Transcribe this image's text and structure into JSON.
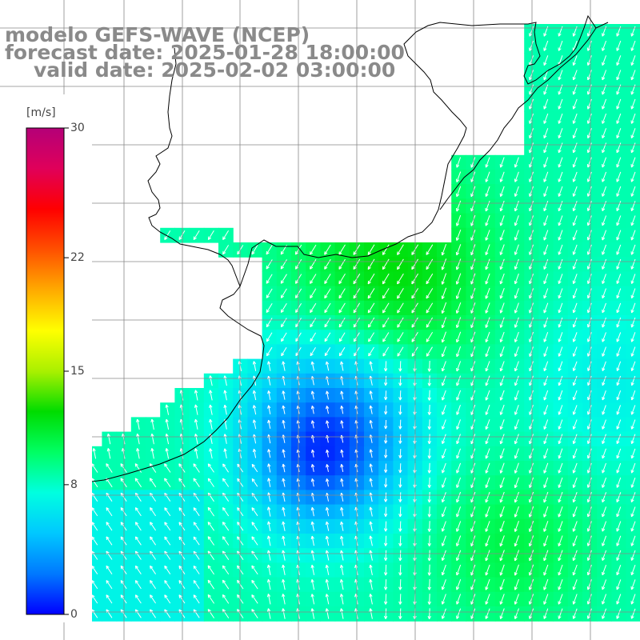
{
  "title": {
    "line1": "modelo GEFS-WAVE (NCEP)",
    "line2": "forecast date: 2025-01-28 18:00:00",
    "line3": "valid date: 2025-02-02 03:00:00"
  },
  "colorbar": {
    "unit": "[m/s]",
    "ticks": [
      {
        "label": "30",
        "value": 30
      },
      {
        "label": "22",
        "value": 22
      },
      {
        "label": "15",
        "value": 15
      },
      {
        "label": "8",
        "value": 8
      },
      {
        "label": "0",
        "value": 0
      }
    ],
    "colors": [
      "#0000ff",
      "#0078ff",
      "#00c8ff",
      "#00ffe0",
      "#00ff64",
      "#00dc00",
      "#aaf000",
      "#ffff00",
      "#ffaa00",
      "#ff5000",
      "#ff0000",
      "#e0005a",
      "#b40078"
    ]
  },
  "map": {
    "variable": "wind speed",
    "colors": {
      "land": "#ffffff",
      "coastline": "#000000",
      "grid": "#888888",
      "arrow": "#ffffff"
    }
  }
}
